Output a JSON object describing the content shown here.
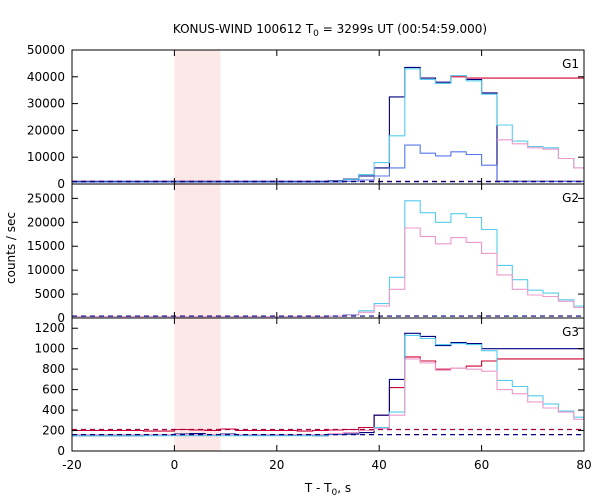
{
  "title": {
    "prefix": "KONUS-WIND 100612 T",
    "sub": "0",
    "suffix": " = 3299s UT (00:54:59.000)"
  },
  "xlabel": {
    "prefix": "T - T",
    "sub": "0",
    "suffix": ", s"
  },
  "ylabel": "counts / sec",
  "chart_data": [
    {
      "type": "line",
      "label": "G1",
      "xlim": [
        -20,
        80
      ],
      "ylim": [
        0,
        50000
      ],
      "xticks": [
        -20,
        0,
        20,
        40,
        60,
        80
      ],
      "yticks": [
        0,
        10000,
        20000,
        30000,
        40000,
        50000
      ],
      "shaded_region": {
        "x": [
          0,
          9
        ],
        "color": "#fde8e8"
      },
      "series": [
        {
          "color": "#000080",
          "style": "step",
          "x": [
            -22,
            26,
            30,
            33,
            36,
            39,
            42,
            45,
            48,
            51,
            54,
            57,
            60,
            63,
            66,
            69,
            72,
            75,
            78,
            80
          ],
          "y": [
            1000,
            1000,
            1200,
            1800,
            3000,
            6000,
            32500,
            43500,
            39500,
            38000,
            40500,
            39000,
            34000,
            1000,
            1000,
            1000,
            1000,
            1000,
            1000,
            1000
          ]
        },
        {
          "color": "#cc0033",
          "style": "step",
          "x": [
            54,
            57,
            60
          ],
          "y": [
            40000,
            39500,
            39500
          ]
        },
        {
          "color": "#55ccee",
          "style": "step",
          "x": [
            -22,
            26,
            30,
            33,
            36,
            39,
            42,
            45,
            48,
            51,
            54,
            57,
            60,
            63,
            66,
            69,
            72,
            75,
            78,
            80
          ],
          "y": [
            800,
            800,
            1000,
            1600,
            3500,
            8000,
            18000,
            43000,
            39000,
            37500,
            40500,
            38500,
            33500,
            22000,
            16000,
            14000,
            13500,
            9500,
            6000,
            6000
          ]
        },
        {
          "color": "#5577ee",
          "style": "step",
          "x": [
            -22,
            26,
            30,
            33,
            36,
            39,
            42,
            45,
            48,
            51,
            54,
            57,
            60,
            63,
            66,
            69,
            72,
            75,
            78,
            80
          ],
          "y": [
            700,
            700,
            800,
            1000,
            1500,
            3000,
            6000,
            14500,
            11500,
            10500,
            12000,
            11000,
            7000,
            900,
            900,
            900,
            900,
            900,
            900,
            900
          ]
        },
        {
          "color": "#ee99cc",
          "style": "step",
          "x": [
            63,
            66,
            69,
            72,
            75,
            78,
            80
          ],
          "y": [
            16500,
            15000,
            13500,
            13000,
            9500,
            6000,
            6000
          ]
        },
        {
          "color": "#aa0044",
          "style": "dashed",
          "x": [
            -20,
            80
          ],
          "y": [
            1000,
            1000
          ]
        },
        {
          "color": "#000080",
          "style": "dashed",
          "x": [
            -20,
            80
          ],
          "y": [
            900,
            900
          ]
        }
      ]
    },
    {
      "type": "line",
      "label": "G2",
      "xlim": [
        -20,
        80
      ],
      "ylim": [
        0,
        28000
      ],
      "xticks": [
        -20,
        0,
        20,
        40,
        60,
        80
      ],
      "yticks": [
        0,
        5000,
        10000,
        15000,
        20000,
        25000
      ],
      "shaded_region": {
        "x": [
          0,
          9
        ],
        "color": "#fde8e8"
      },
      "series": [
        {
          "color": "#55ccee",
          "style": "step",
          "x": [
            -22,
            26,
            30,
            33,
            36,
            39,
            42,
            45,
            48,
            51,
            54,
            57,
            60,
            63,
            66,
            69,
            72,
            75,
            78,
            80
          ],
          "y": [
            300,
            300,
            400,
            700,
            1500,
            3000,
            8500,
            24500,
            22000,
            20000,
            21800,
            21000,
            18500,
            11000,
            8000,
            5800,
            5200,
            3800,
            2500,
            2500
          ]
        },
        {
          "color": "#ee99cc",
          "style": "step",
          "x": [
            -22,
            26,
            30,
            33,
            36,
            39,
            42,
            45,
            48,
            51,
            54,
            57,
            60,
            63,
            66,
            69,
            72,
            75,
            78,
            80
          ],
          "y": [
            300,
            300,
            400,
            600,
            1200,
            2500,
            6000,
            18800,
            17000,
            15500,
            16800,
            15800,
            13500,
            9000,
            6000,
            4800,
            4500,
            3500,
            2200,
            2200
          ]
        },
        {
          "color": "#000080",
          "style": "dashed",
          "x": [
            -20,
            80
          ],
          "y": [
            400,
            400
          ]
        }
      ]
    },
    {
      "type": "line",
      "label": "G3",
      "xlim": [
        -20,
        80
      ],
      "ylim": [
        0,
        1300
      ],
      "xticks": [
        -20,
        0,
        20,
        40,
        60,
        80
      ],
      "yticks": [
        0,
        200,
        400,
        600,
        800,
        1000,
        1200
      ],
      "shaded_region": {
        "x": [
          0,
          9
        ],
        "color": "#fde8e8"
      },
      "series": [
        {
          "color": "#cc0033",
          "style": "step",
          "x": [
            -22,
            -12,
            -6,
            0,
            3,
            6,
            9,
            12,
            18,
            24,
            27,
            30,
            33,
            36,
            39,
            42,
            45,
            48,
            51,
            54,
            57,
            60,
            63
          ],
          "y": [
            200,
            200,
            195,
            210,
            205,
            200,
            215,
            200,
            200,
            195,
            200,
            205,
            210,
            230,
            350,
            620,
            920,
            880,
            800,
            810,
            830,
            880,
            900
          ]
        },
        {
          "color": "#000080",
          "style": "step",
          "x": [
            -22,
            -12,
            -6,
            0,
            3,
            6,
            9,
            12,
            18,
            24,
            27,
            30,
            33,
            36,
            39,
            42,
            45,
            48,
            51,
            54,
            57,
            60,
            63
          ],
          "y": [
            150,
            150,
            160,
            165,
            170,
            160,
            165,
            155,
            155,
            160,
            150,
            160,
            165,
            180,
            350,
            700,
            1150,
            1120,
            1030,
            1060,
            1050,
            1000,
            1000
          ]
        },
        {
          "color": "#55ccee",
          "style": "step",
          "x": [
            -22,
            26,
            30,
            33,
            36,
            39,
            42,
            45,
            48,
            51,
            54,
            57,
            60,
            63,
            66,
            69,
            72,
            75,
            78,
            80
          ],
          "y": [
            150,
            150,
            165,
            180,
            200,
            230,
            380,
            1130,
            1100,
            1040,
            1050,
            1040,
            980,
            690,
            630,
            540,
            460,
            390,
            330,
            330
          ]
        },
        {
          "color": "#ee99cc",
          "style": "step",
          "x": [
            -22,
            26,
            30,
            33,
            36,
            39,
            42,
            45,
            48,
            51,
            54,
            57,
            60,
            63,
            66,
            69,
            72,
            75,
            78,
            80
          ],
          "y": [
            160,
            160,
            170,
            180,
            200,
            220,
            350,
            900,
            860,
            790,
            810,
            800,
            780,
            600,
            560,
            480,
            420,
            380,
            310,
            310
          ]
        },
        {
          "color": "#aa0044",
          "style": "dashed",
          "x": [
            -20,
            80
          ],
          "y": [
            210,
            210
          ]
        },
        {
          "color": "#000080",
          "style": "dashed",
          "x": [
            -20,
            80
          ],
          "y": [
            160,
            160
          ]
        }
      ]
    }
  ]
}
